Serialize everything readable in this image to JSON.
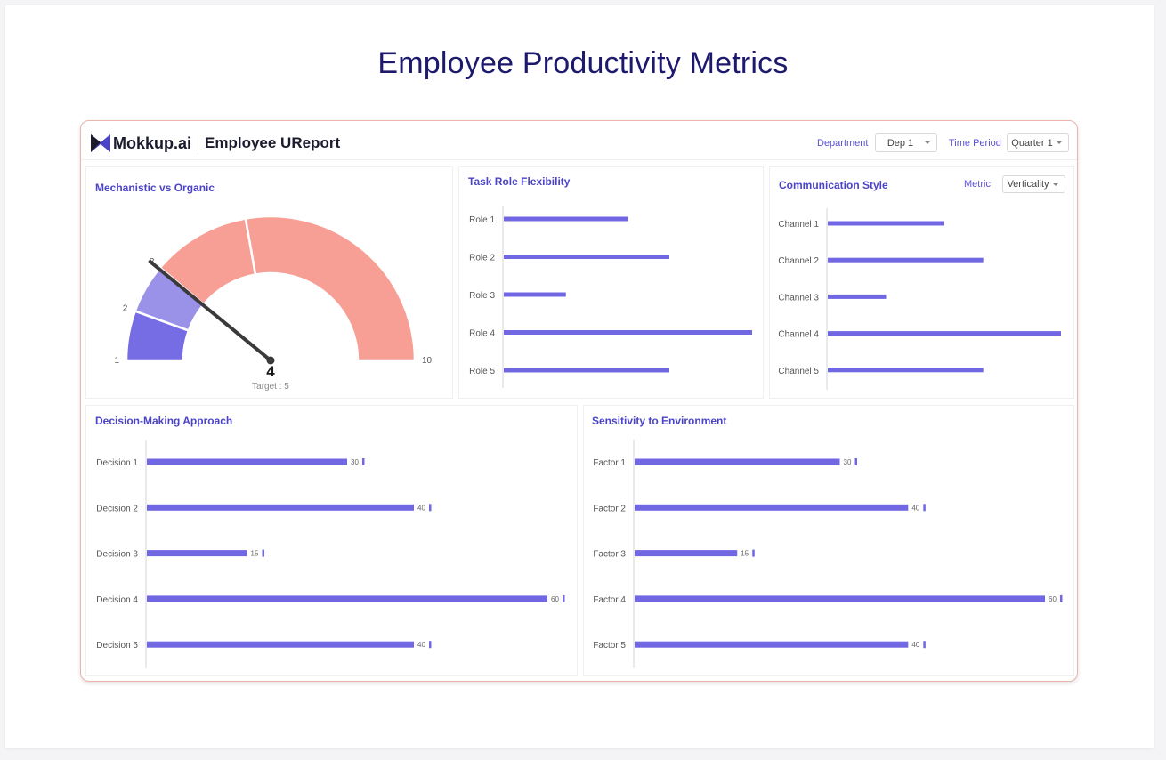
{
  "page_title": "Employee Productivity Metrics",
  "header": {
    "brand": "Mokkup.ai",
    "report_title": "Employee UReport",
    "brand_color": "#1b1b2e",
    "filters": [
      {
        "label": "Department",
        "value": "Dep 1"
      },
      {
        "label": "Time Period",
        "value": "Quarter 1"
      }
    ]
  },
  "colors": {
    "accent": "#5a50d6",
    "bar": "#7167e3",
    "gauge_salmon": "#f79e95",
    "gauge_purple_light": "#9a91e8",
    "gauge_purple_dark": "#766ce4",
    "frame_border": "#e9b4ac"
  },
  "panels": {
    "gauge": {
      "title": "Mechanistic vs Organic",
      "chart_data": {
        "type": "gauge",
        "min": 1,
        "max": 10,
        "value": 4,
        "target_label": "Target : 5",
        "tick_labels": [
          "1",
          "2",
          "3",
          "10"
        ],
        "bands": [
          {
            "from": 1,
            "to": 2,
            "color": "#766ce4"
          },
          {
            "from": 2,
            "to": 3,
            "color": "#9a91e8"
          },
          {
            "from": 3,
            "to": 5,
            "color": "#f79e95"
          },
          {
            "from": 5,
            "to": 10,
            "color": "#f79e95"
          }
        ]
      }
    },
    "task_role": {
      "title": "Task Role Flexibility",
      "chart_data": {
        "type": "bar",
        "orientation": "horizontal",
        "categories": [
          "Role 1",
          "Role 2",
          "Role 3",
          "Role 4",
          "Role 5"
        ],
        "values": [
          30,
          40,
          15,
          60,
          40
        ],
        "xlim": [
          0,
          60
        ]
      }
    },
    "communication": {
      "title": "Communication Style",
      "metric_label": "Metric",
      "metric_value": "Verticality",
      "chart_data": {
        "type": "bar",
        "orientation": "horizontal",
        "categories": [
          "Channel 1",
          "Channel 2",
          "Channel 3",
          "Channel 4",
          "Channel 5"
        ],
        "values": [
          30,
          40,
          15,
          60,
          40
        ],
        "xlim": [
          0,
          60
        ]
      }
    },
    "decision": {
      "title": "Decision-Making Approach",
      "chart_data": {
        "type": "bar",
        "orientation": "horizontal",
        "categories": [
          "Decision 1",
          "Decision 2",
          "Decision 3",
          "Decision 4",
          "Decision 5"
        ],
        "values": [
          30,
          40,
          15,
          60,
          40
        ],
        "data_labels": [
          "30",
          "40",
          "15",
          "60",
          "40"
        ],
        "xlim": [
          0,
          60
        ]
      }
    },
    "sensitivity": {
      "title": "Sensitivity to Environment",
      "chart_data": {
        "type": "bar",
        "orientation": "horizontal",
        "categories": [
          "Factor 1",
          "Factor 2",
          "Factor 3",
          "Factor 4",
          "Factor 5"
        ],
        "values": [
          30,
          40,
          15,
          60,
          40
        ],
        "data_labels": [
          "30",
          "40",
          "15",
          "60",
          "40"
        ],
        "xlim": [
          0,
          60
        ]
      }
    }
  }
}
